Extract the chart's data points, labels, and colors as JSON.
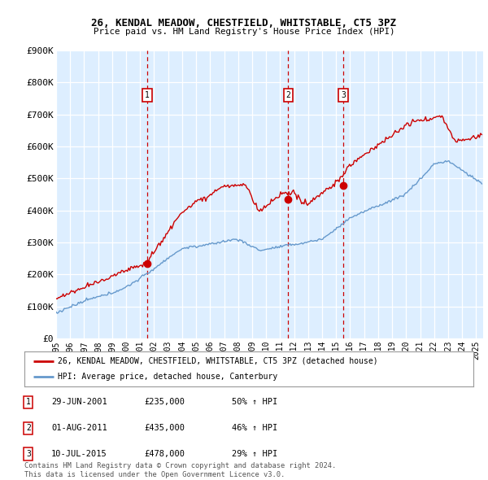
{
  "title": "26, KENDAL MEADOW, CHESTFIELD, WHITSTABLE, CT5 3PZ",
  "subtitle": "Price paid vs. HM Land Registry's House Price Index (HPI)",
  "ylim": [
    0,
    900000
  ],
  "yticks": [
    0,
    100000,
    200000,
    300000,
    400000,
    500000,
    600000,
    700000,
    800000,
    900000
  ],
  "xlim_start": 1995.0,
  "xlim_end": 2025.5,
  "sale_dates": [
    2001.493,
    2011.582,
    2015.527
  ],
  "sale_prices": [
    235000,
    435000,
    478000
  ],
  "sale_labels": [
    "1",
    "2",
    "3"
  ],
  "red_line_color": "#cc0000",
  "blue_line_color": "#6699cc",
  "vline_color": "#cc0000",
  "grid_color": "#cccccc",
  "bg_chart_color": "#ddeeff",
  "legend_label_red": "26, KENDAL MEADOW, CHESTFIELD, WHITSTABLE, CT5 3PZ (detached house)",
  "legend_label_blue": "HPI: Average price, detached house, Canterbury",
  "table_entries": [
    {
      "num": "1",
      "date": "29-JUN-2001",
      "price": "£235,000",
      "change": "50% ↑ HPI"
    },
    {
      "num": "2",
      "date": "01-AUG-2011",
      "price": "£435,000",
      "change": "46% ↑ HPI"
    },
    {
      "num": "3",
      "date": "10-JUL-2015",
      "price": "£478,000",
      "change": "29% ↑ HPI"
    }
  ],
  "footnote": "Contains HM Land Registry data © Crown copyright and database right 2024.\nThis data is licensed under the Open Government Licence v3.0.",
  "background_color": "#ffffff",
  "num_points": 365
}
